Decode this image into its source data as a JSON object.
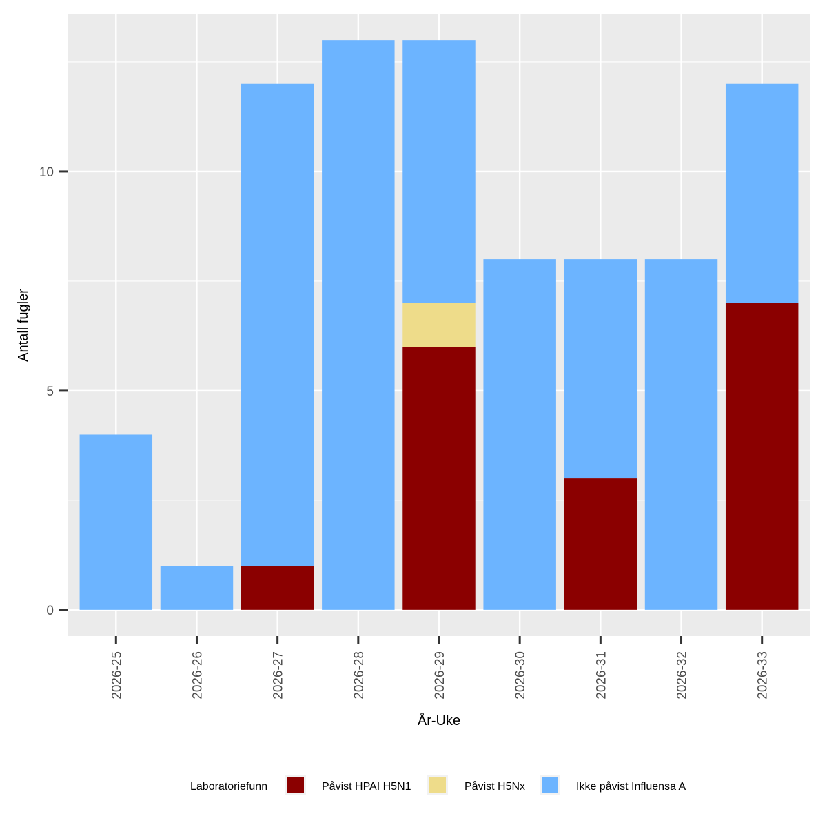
{
  "chart_data": {
    "type": "bar",
    "stacked": true,
    "categories": [
      "2026-25",
      "2026-26",
      "2026-27",
      "2026-28",
      "2026-29",
      "2026-30",
      "2026-31",
      "2026-32",
      "2026-33"
    ],
    "series": [
      {
        "name": "Påvist HPAI H5N1",
        "color": "#8B0000",
        "values": [
          0,
          0,
          1,
          0,
          6,
          0,
          3,
          0,
          7
        ]
      },
      {
        "name": "Påvist H5Nx",
        "color": "#EEDC8A",
        "values": [
          0,
          0,
          0,
          0,
          1,
          0,
          0,
          0,
          0
        ]
      },
      {
        "name": "Ikke påvist Influensa A",
        "color": "#6CB4FF",
        "values": [
          4,
          1,
          11,
          13,
          6,
          8,
          5,
          8,
          5
        ]
      }
    ],
    "xlabel": "År-Uke",
    "ylabel": "Antall fugler",
    "ylim": [
      -0.6,
      13.6
    ],
    "yticks": [
      0,
      5,
      10
    ],
    "y_minor_ticks": [
      2.5,
      7.5,
      12.5
    ],
    "grid": true,
    "legend": {
      "position": "bottom",
      "title": "Laboratoriefunn"
    },
    "colors": {
      "panel": "#EBEBEB",
      "grid": "#FFFFFF",
      "tick": "#333333"
    }
  }
}
